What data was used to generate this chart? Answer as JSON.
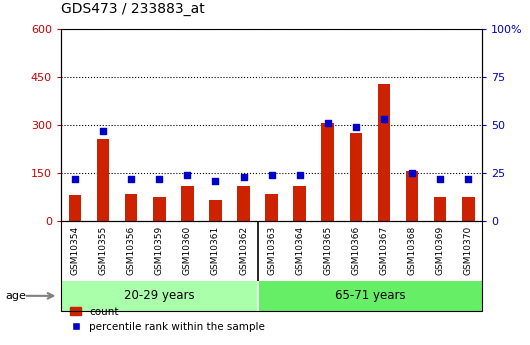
{
  "title": "GDS473 / 233883_at",
  "samples": [
    "GSM10354",
    "GSM10355",
    "GSM10356",
    "GSM10359",
    "GSM10360",
    "GSM10361",
    "GSM10362",
    "GSM10363",
    "GSM10364",
    "GSM10365",
    "GSM10366",
    "GSM10367",
    "GSM10368",
    "GSM10369",
    "GSM10370"
  ],
  "count": [
    80,
    255,
    85,
    75,
    110,
    65,
    110,
    85,
    110,
    305,
    275,
    430,
    155,
    75,
    75
  ],
  "percentile": [
    22,
    47,
    22,
    22,
    24,
    21,
    23,
    24,
    24,
    51,
    49,
    53,
    25,
    22,
    22
  ],
  "groups": [
    {
      "label": "20-29 years",
      "start": 0,
      "end": 7,
      "color": "#AAFFAA"
    },
    {
      "label": "65-71 years",
      "start": 7,
      "end": 15,
      "color": "#66EE66"
    }
  ],
  "age_label": "age",
  "left_ylim": [
    0,
    600
  ],
  "right_ylim": [
    0,
    100
  ],
  "left_yticks": [
    0,
    150,
    300,
    450,
    600
  ],
  "right_yticks": [
    0,
    25,
    50,
    75,
    100
  ],
  "right_yticklabels": [
    "0",
    "25",
    "50",
    "75",
    "100%"
  ],
  "left_color": "#CC0000",
  "right_color": "#0000CC",
  "bar_color": "#CC2200",
  "dot_color": "#0000CC",
  "xlabel_bg": "#C8C8C8",
  "legend_count_label": "count",
  "legend_pct_label": "percentile rank within the sample"
}
